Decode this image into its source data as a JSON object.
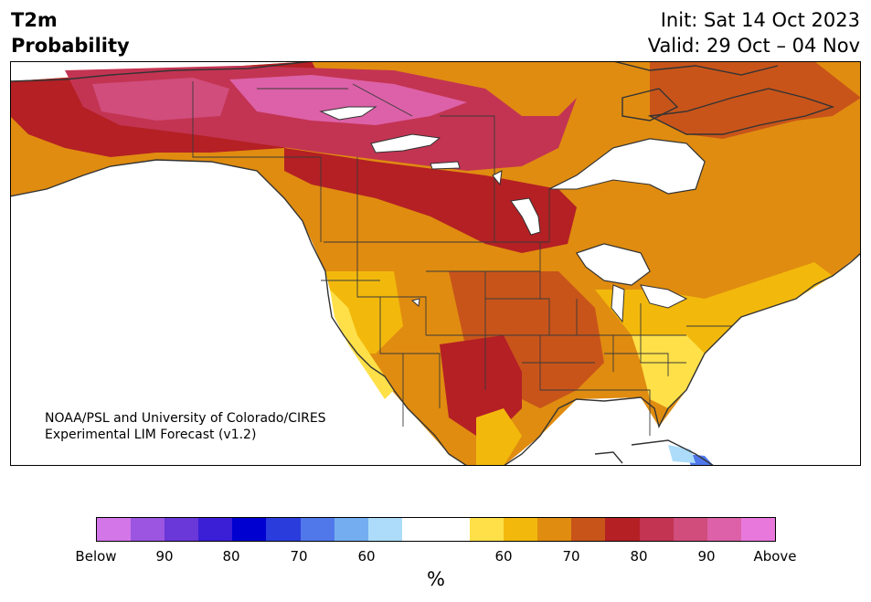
{
  "header": {
    "title_line1": "T2m",
    "title_line2": "Probability",
    "init": "Init: Sat 14 Oct 2023",
    "valid": "Valid: 29 Oct – 04 Nov"
  },
  "credit": {
    "line1": "NOAA/PSL and University of Colorado/CIRES",
    "line2": "Experimental LIM Forecast (v1.2)"
  },
  "legend": {
    "unit": "%",
    "tick_labels": [
      "Below",
      "90",
      "80",
      "70",
      "60",
      "60",
      "70",
      "80",
      "90",
      "Above"
    ],
    "colors": [
      "#d376e8",
      "#9b55e0",
      "#6a37d8",
      "#3a1fd6",
      "#0000d0",
      "#2a3ddc",
      "#5078ea",
      "#74aef0",
      "#acdcfa",
      "#ffffff",
      "#ffffff",
      "#ffe048",
      "#f2b90c",
      "#e08c10",
      "#c8541a",
      "#b42024",
      "#c33452",
      "#d04d7c",
      "#dc61a8",
      "#e878dc"
    ]
  },
  "map": {
    "region": "North America",
    "field": "2m temperature probability",
    "palette": {
      "ocean": "#ffffff",
      "p60": "#ffe048",
      "p70": "#f2b90c",
      "p75": "#e08c10",
      "p80": "#c8541a",
      "p85": "#b42024",
      "p90": "#c33452",
      "p95": "#d04d7c",
      "above": "#dc61a8",
      "below_blue": "#5078ea",
      "light_blue": "#acdcfa"
    }
  }
}
